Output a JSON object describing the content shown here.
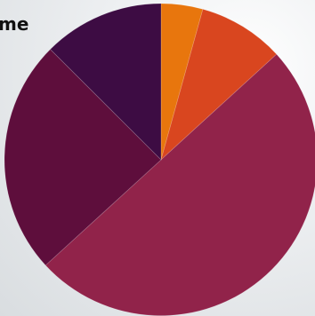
{
  "title_fragment": "me",
  "chart_data": {
    "type": "pie",
    "title": "me",
    "start_angle_deg": 0,
    "direction": "clockwise",
    "slices": [
      {
        "value": 4.3,
        "color": "#e8760d"
      },
      {
        "value": 8.9,
        "color": "#d9461f"
      },
      {
        "value": 50.0,
        "color": "#91234a"
      },
      {
        "value": 24.3,
        "color": "#5e0e3c"
      },
      {
        "value": 12.5,
        "color": "#3d0c43"
      }
    ]
  }
}
